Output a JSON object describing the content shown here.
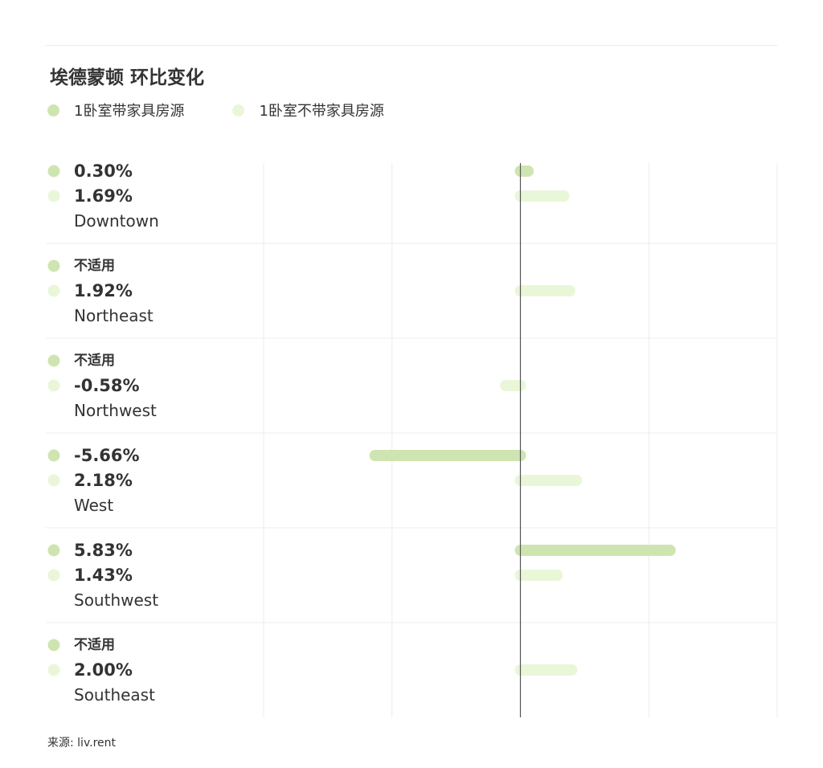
{
  "colors": {
    "furnished": "#cfe5b1",
    "unfurnished": "#e9f7d8",
    "grid": "#ececec",
    "axis": "#555555",
    "text": "#333333"
  },
  "chart_data": {
    "type": "bar",
    "orientation": "horizontal",
    "title": "埃德蒙顿 环比变化",
    "legend_position": "top-left",
    "grid": true,
    "xlim": [
      -10,
      10
    ],
    "categories": [
      "Downtown",
      "Northeast",
      "Northwest",
      "West",
      "Southwest",
      "Southeast"
    ],
    "series": [
      {
        "name": "1卧室带家具房源",
        "color_key": "furnished",
        "values": [
          0.3,
          null,
          null,
          -5.66,
          5.83,
          null
        ],
        "labels": [
          "0.30%",
          "不适用",
          "不适用",
          "-5.66%",
          "5.83%",
          "不适用"
        ]
      },
      {
        "name": "1卧室不带家具房源",
        "color_key": "unfurnished",
        "values": [
          1.69,
          1.92,
          -0.58,
          2.18,
          1.43,
          2.0
        ],
        "labels": [
          "1.69%",
          "1.92%",
          "-0.58%",
          "2.18%",
          "1.43%",
          "2.00%"
        ]
      }
    ]
  },
  "source": "来源: liv.rent"
}
